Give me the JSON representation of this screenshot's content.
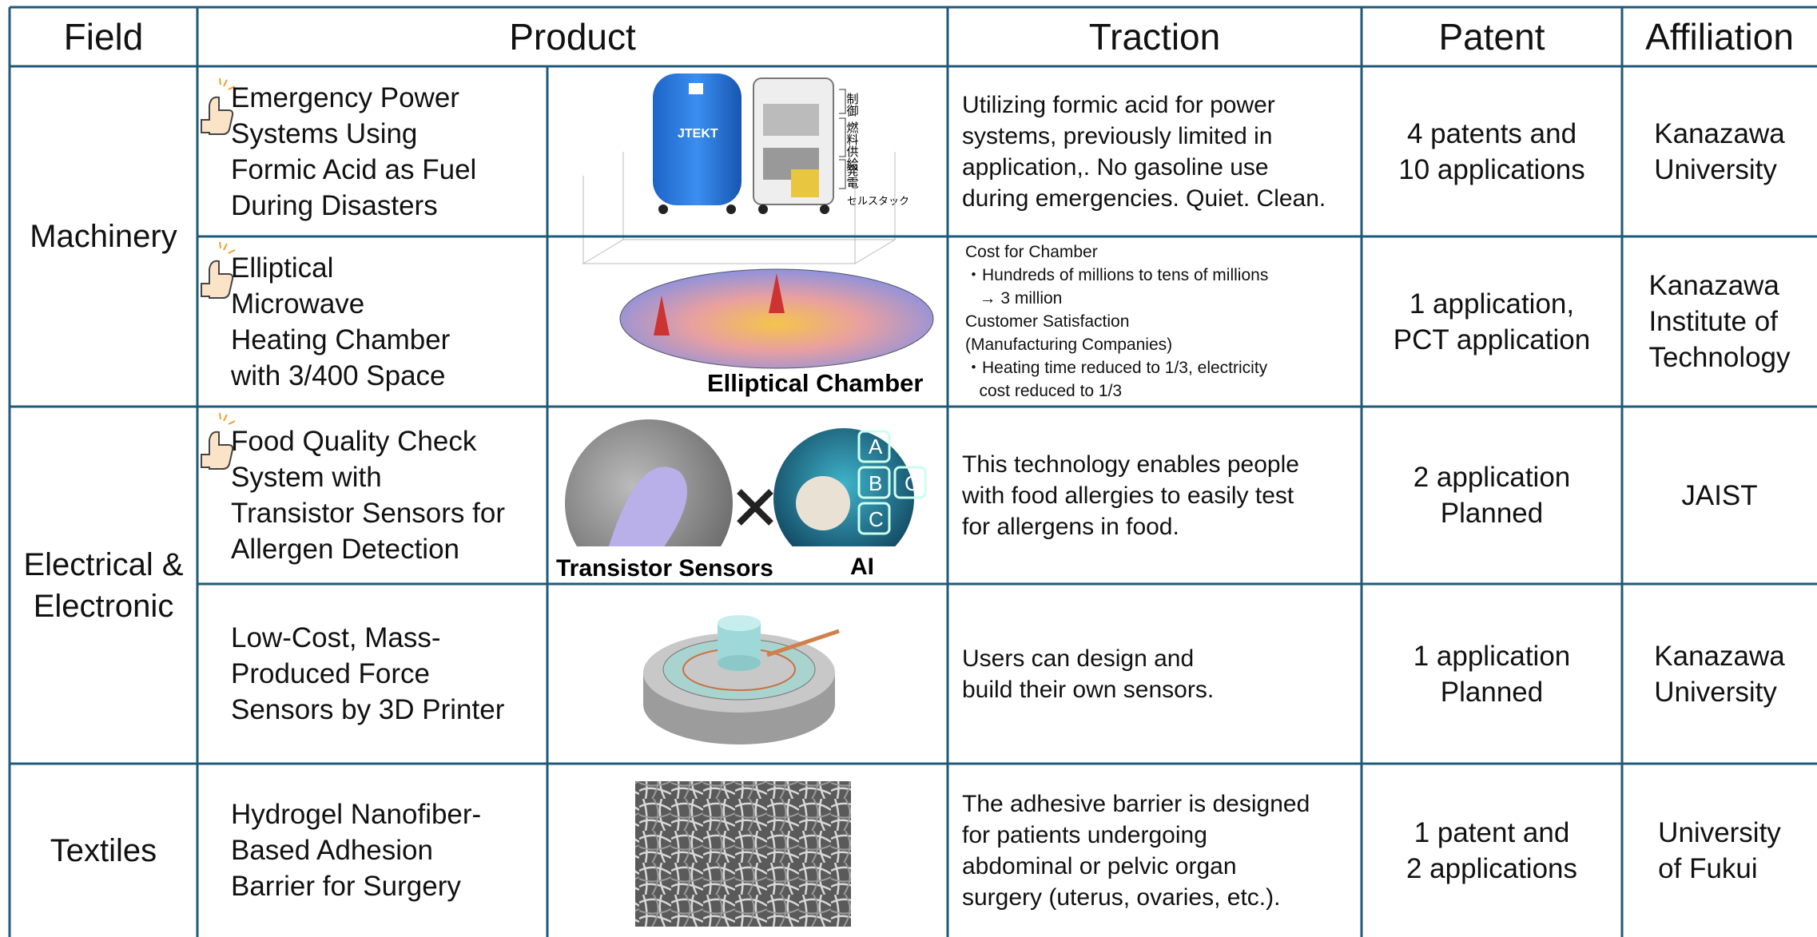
{
  "header": {
    "columns": [
      "Field",
      "Product",
      "Traction",
      "Patent",
      "Affiliation"
    ]
  },
  "fields": [
    {
      "lines": [
        "Machinery"
      ]
    },
    {
      "lines": [
        "Electrical &",
        "Electronic"
      ]
    },
    {
      "lines": [
        "Textiles"
      ]
    }
  ],
  "rows": [
    {
      "product": [
        "Emergency Power",
        "Systems Using",
        "Formic Acid as Fuel",
        "During Disasters"
      ],
      "traction": [
        "Utilizing formic acid for power",
        "systems, previously limited in",
        "application,. No gasoline use",
        "during emergencies. Quiet. Clean."
      ],
      "patent": [
        "4 patents and",
        "10 applications"
      ],
      "affiliation": [
        "Kanazawa",
        "University"
      ],
      "image_labels": [
        "JTEKT",
        "制御",
        "燃料供給",
        "発電",
        "セルスタック"
      ]
    },
    {
      "product": [
        "Elliptical",
        "Microwave",
        "Heating Chamber",
        "with 3/400 Space"
      ],
      "traction": [
        "Cost for Chamber",
        "・Hundreds of millions to tens of millions",
        "   → 3 million",
        "Customer Satisfaction",
        "(Manufacturing Companies)",
        "・Heating time reduced to 1/3, electricity",
        "   cost reduced to 1/3"
      ],
      "patent": [
        "1 application,",
        "PCT application"
      ],
      "affiliation": [
        "Kanazawa",
        "Institute of",
        "Technology"
      ],
      "image_labels": [
        "Elliptical Chamber"
      ]
    },
    {
      "product": [
        "Food Quality Check",
        "System with",
        "Transistor Sensors for",
        "Allergen Detection"
      ],
      "traction": [
        "This technology enables people",
        "with food allergies to easily test",
        "for allergens in food."
      ],
      "patent": [
        "2 application",
        "Planned"
      ],
      "affiliation": [
        "JAIST"
      ],
      "image_labels": [
        "Transistor Sensors",
        "AI",
        "A",
        "B",
        "C",
        "C"
      ]
    },
    {
      "product": [
        "Low-Cost, Mass-",
        "Produced Force",
        "Sensors by 3D Printer"
      ],
      "traction": [
        "Users can design and",
        "build their own sensors."
      ],
      "patent": [
        "1 application",
        "Planned"
      ],
      "affiliation": [
        "Kanazawa",
        "University"
      ],
      "image_labels": []
    },
    {
      "product": [
        "Hydrogel Nanofiber-",
        "Based Adhesion",
        "Barrier for Surgery"
      ],
      "traction": [
        "The adhesive barrier is designed",
        "for patients undergoing",
        "abdominal or pelvic organ",
        "surgery (uterus, ovaries, etc.)."
      ],
      "patent": [
        "1 patent and",
        "2 applications"
      ],
      "affiliation": [
        "University",
        "of Fukui"
      ],
      "image_labels": []
    }
  ]
}
